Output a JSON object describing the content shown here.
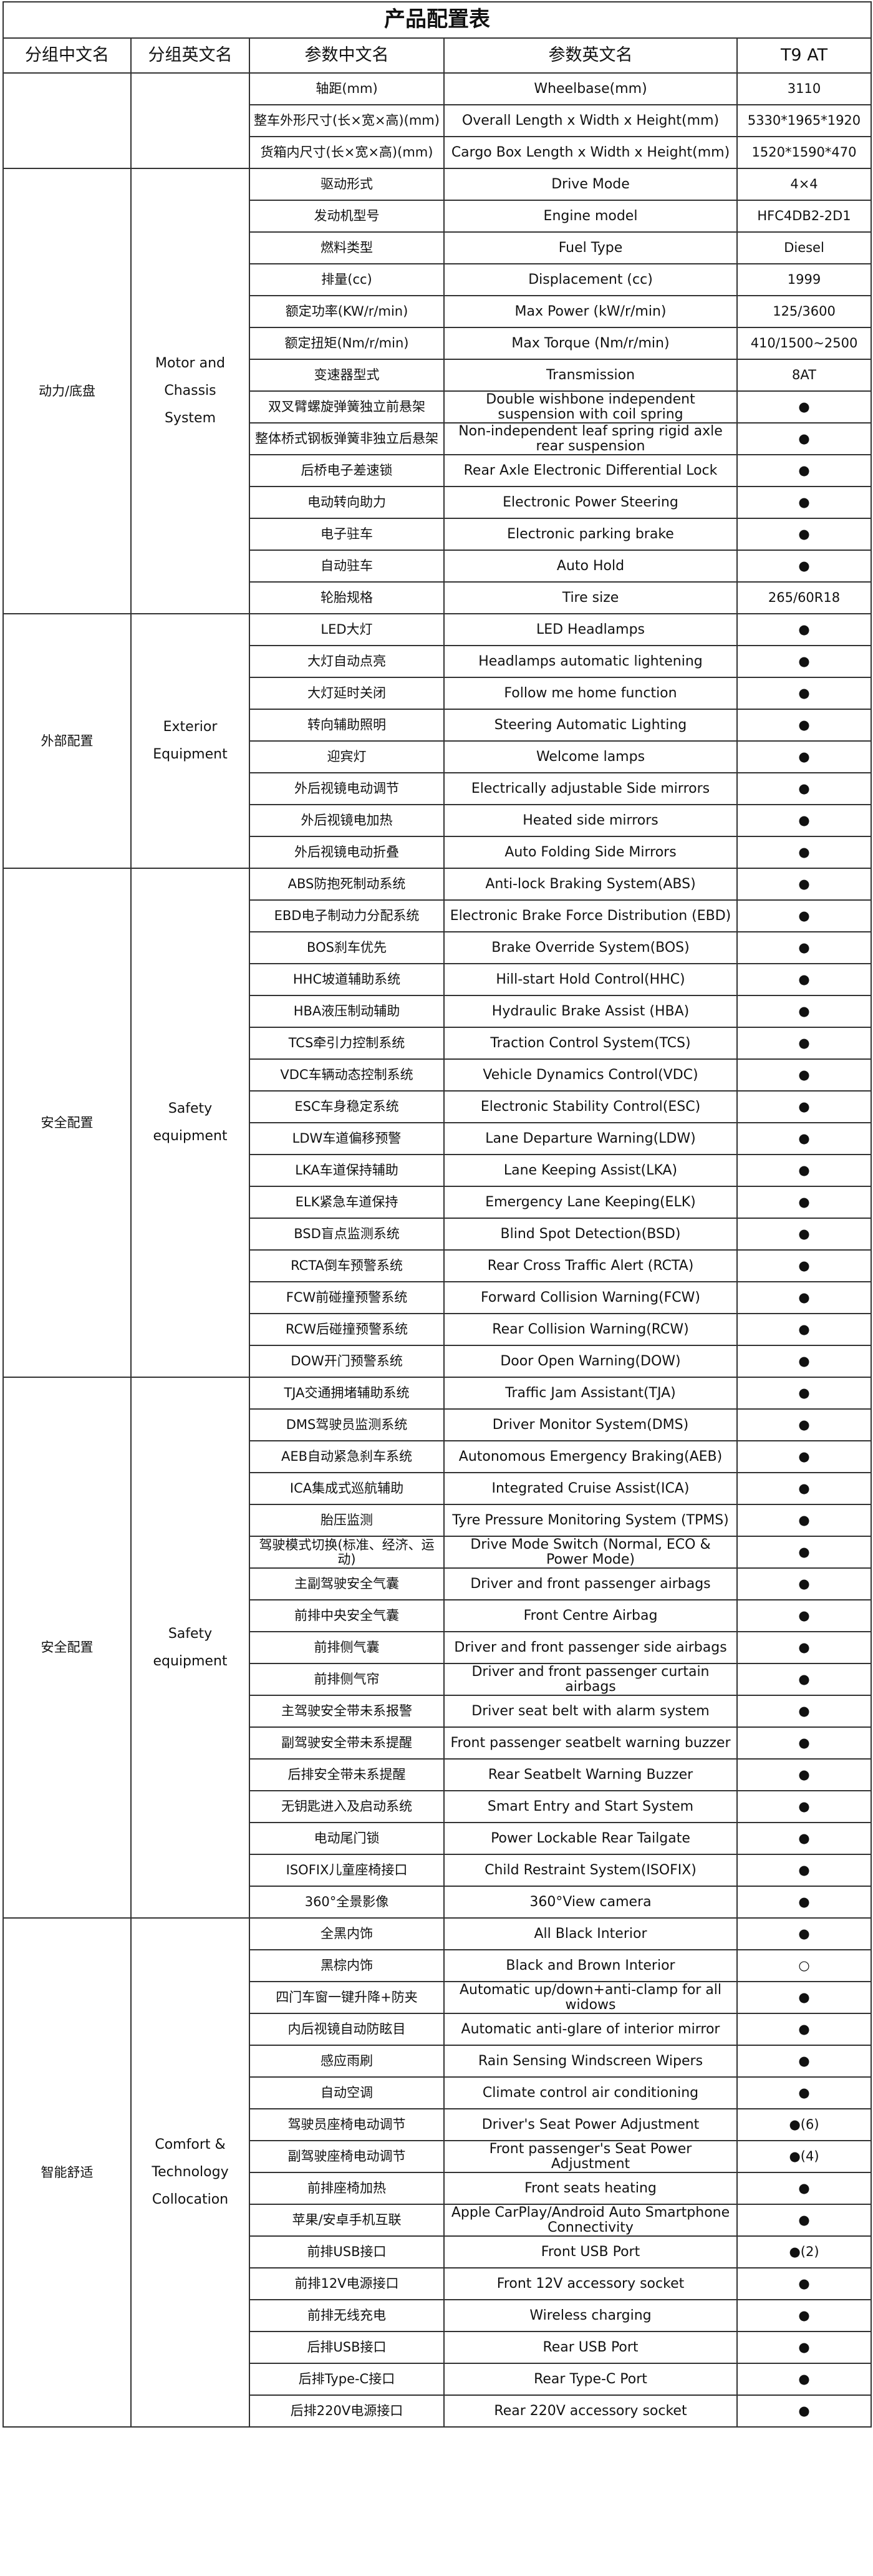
{
  "header": {
    "title": "产品配置表",
    "columns": [
      "分组中文名",
      "分组英文名",
      "参数中文名",
      "参数英文名",
      "T9 AT"
    ]
  },
  "groups": [
    {
      "rows": [
        [
          "轴距(mm)",
          "Wheelbase(mm)",
          "3110"
        ],
        [
          "整车外形尺寸(长×宽×高)(mm)",
          "Overall Length x Width x Height(mm)",
          "5330*1965*1920"
        ],
        [
          "货箱内尺寸(长×宽×高)(mm)",
          "Cargo Box Length x Width x Height(mm)",
          "1520*1590*470"
        ]
      ]
    },
    {
      "name_cn": "动力/底盘",
      "name_en": "Motor and Chassis System",
      "rows": [
        [
          "驱动形式",
          "Drive Mode",
          "4×4"
        ],
        [
          "发动机型号",
          "Engine model",
          "HFC4DB2-2D1"
        ],
        [
          "燃料类型",
          "Fuel Type",
          "Diesel"
        ],
        [
          "排量(cc)",
          "Displacement (cc)",
          "1999"
        ],
        [
          "额定功率(KW/r/min)",
          "Max Power (kW/r/min)",
          "125/3600"
        ],
        [
          "额定扭矩(Nm/r/min)",
          "Max Torque (Nm/r/min)",
          "410/1500~2500"
        ],
        [
          "变速器型式",
          "Transmission",
          "8AT"
        ],
        [
          "双叉臂螺旋弹簧独立前悬架",
          "Double wishbone independent suspension with coil spring",
          "●"
        ],
        [
          "整体桥式钢板弹簧非独立后悬架",
          "Non-independent leaf spring rigid axle rear suspension",
          "●"
        ],
        [
          "后桥电子差速锁",
          "Rear Axle Electronic Differential Lock",
          "●"
        ],
        [
          "电动转向助力",
          "Electronic Power Steering",
          "●"
        ],
        [
          "电子驻车",
          "Electronic parking brake",
          "●"
        ],
        [
          "自动驻车",
          "Auto Hold",
          "●"
        ],
        [
          "轮胎规格",
          "Tire size",
          "265/60R18"
        ]
      ]
    },
    {
      "name_cn": "外部配置",
      "name_en": "Exterior Equipment",
      "rows": [
        [
          "LED大灯",
          "LED Headlamps",
          "●"
        ],
        [
          "大灯自动点亮",
          "Headlamps automatic lightening",
          "●"
        ],
        [
          "大灯延时关闭",
          "Follow me home function",
          "●"
        ],
        [
          "转向辅助照明",
          "Steering Automatic Lighting",
          "●"
        ],
        [
          "迎宾灯",
          "Welcome lamps",
          "●"
        ],
        [
          "外后视镜电动调节",
          "Electrically adjustable Side mirrors",
          "●"
        ],
        [
          "外后视镜电加热",
          "Heated side mirrors",
          "●"
        ],
        [
          "外后视镜电动折叠",
          "Auto Folding Side Mirrors",
          "●"
        ]
      ]
    },
    {
      "name_cn": "安全配置",
      "name_en": "Safety equipment",
      "rows": [
        [
          "ABS防抱死制动系统",
          "Anti-lock Braking System(ABS)",
          "●"
        ],
        [
          "EBD电子制动力分配系统",
          "Electronic Brake Force Distribution (EBD)",
          "●"
        ],
        [
          "BOS刹车优先",
          "Brake Override System(BOS)",
          "●"
        ],
        [
          "HHC坡道辅助系统",
          "Hill-start Hold Control(HHC)",
          "●"
        ],
        [
          "HBA液压制动辅助",
          "Hydraulic Brake Assist (HBA)",
          "●"
        ],
        [
          "TCS牵引力控制系统",
          "Traction Control System(TCS)",
          "●"
        ],
        [
          "VDC车辆动态控制系统",
          "Vehicle Dynamics Control(VDC)",
          "●"
        ],
        [
          "ESC车身稳定系统",
          "Electronic Stability Control(ESC)",
          "●"
        ],
        [
          "LDW车道偏移预警",
          "Lane Departure Warning(LDW)",
          "●"
        ],
        [
          "LKA车道保持辅助",
          "Lane Keeping Assist(LKA)",
          "●"
        ],
        [
          "ELK紧急车道保持",
          "Emergency Lane Keeping(ELK)",
          "●"
        ],
        [
          "BSD盲点监测系统",
          "Blind Spot Detection(BSD)",
          "●"
        ],
        [
          "RCTA倒车预警系统",
          "Rear Cross Traffic Alert (RCTA)",
          "●"
        ],
        [
          "FCW前碰撞预警系统",
          "Forward Collision Warning(FCW)",
          "●"
        ],
        [
          "RCW后碰撞预警系统",
          "Rear Collision Warning(RCW)",
          "●"
        ],
        [
          "DOW开门预警系统",
          "Door Open Warning(DOW)",
          "●"
        ]
      ]
    },
    {
      "name_cn": "安全配置",
      "name_en": "Safety equipment",
      "rows": [
        [
          "TJA交通拥堵辅助系统",
          "Traffic Jam Assistant(TJA)",
          "●"
        ],
        [
          "DMS驾驶员监测系统",
          "Driver Monitor System(DMS)",
          "●"
        ],
        [
          "AEB自动紧急刹车系统",
          "Autonomous Emergency Braking(AEB)",
          "●"
        ],
        [
          "ICA集成式巡航辅助",
          "Integrated Cruise Assist(ICA)",
          "●"
        ],
        [
          "胎压监测",
          "Tyre Pressure Monitoring System (TPMS)",
          "●"
        ],
        [
          "驾驶模式切换(标准、经济、运动)",
          "Drive Mode Switch (Normal, ECO & Power Mode)",
          "●"
        ],
        [
          "主副驾驶安全气囊",
          "Driver and front passenger airbags",
          "●"
        ],
        [
          "前排中央安全气囊",
          "Front Centre Airbag",
          "●"
        ],
        [
          "前排侧气囊",
          "Driver and front passenger side airbags",
          "●"
        ],
        [
          "前排侧气帘",
          "Driver and front passenger curtain airbags",
          "●"
        ],
        [
          "主驾驶安全带未系报警",
          "Driver seat belt with alarm system",
          "●"
        ],
        [
          "副驾驶安全带未系提醒",
          "Front passenger seatbelt warning buzzer",
          "●"
        ],
        [
          "后排安全带未系提醒",
          "Rear Seatbelt Warning Buzzer",
          "●"
        ],
        [
          "无钥匙进入及启动系统",
          "Smart Entry and Start System",
          "●"
        ],
        [
          "电动尾门锁",
          "Power Lockable Rear Tailgate",
          "●"
        ],
        [
          "ISOFIX儿童座椅接口",
          "Child Restraint System(ISOFIX)",
          "●"
        ],
        [
          "360°全景影像",
          "360°View camera",
          "●"
        ]
      ]
    },
    {
      "name_cn": "智能舒适",
      "name_en": "Comfort & Technology Collocation",
      "rows": [
        [
          "全黑内饰",
          "All Black Interior",
          "●"
        ],
        [
          "黑棕内饰",
          "Black and Brown Interior",
          "○"
        ],
        [
          "四门车窗一键升降+防夹",
          "Automatic up/down+anti-clamp for all widows",
          "●"
        ],
        [
          "内后视镜自动防眩目",
          "Automatic anti-glare of interior mirror",
          "●"
        ],
        [
          "感应雨刷",
          "Rain Sensing Windscreen Wipers",
          "●"
        ],
        [
          "自动空调",
          "Climate control air conditioning",
          "●"
        ],
        [
          "驾驶员座椅电动调节",
          "Driver's Seat Power Adjustment",
          "●(6)"
        ],
        [
          "副驾驶座椅电动调节",
          "Front passenger's Seat Power Adjustment",
          "●(4)"
        ],
        [
          "前排座椅加热",
          "Front seats heating",
          "●"
        ],
        [
          "苹果/安卓手机互联",
          "Apple CarPlay/Android Auto Smartphone Connectivity",
          "●"
        ],
        [
          "前排USB接口",
          "Front USB Port",
          "●(2)"
        ],
        [
          "前排12V电源接口",
          "Front 12V accessory socket",
          "●"
        ],
        [
          "前排无线充电",
          "Wireless charging",
          "●"
        ],
        [
          "后排USB接口",
          "Rear USB Port",
          "●"
        ],
        [
          "后排Type-C接口",
          "Rear Type-C Port",
          "●"
        ],
        [
          "后排220V电源接口",
          "Rear 220V accessory socket",
          "●"
        ]
      ]
    }
  ]
}
